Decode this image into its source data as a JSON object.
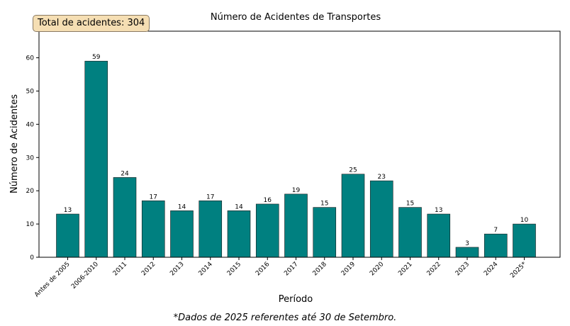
{
  "chart_data": {
    "type": "bar",
    "title": "Número de Acidentes de Transportes",
    "xlabel": "Período",
    "ylabel": "Número de Acidentes",
    "categories": [
      "Antes de 2005",
      "2006-2010",
      "2011",
      "2012",
      "2013",
      "2014",
      "2015",
      "2016",
      "2017",
      "2018",
      "2019",
      "2020",
      "2021",
      "2022",
      "2023",
      "2024",
      "2025*"
    ],
    "values": [
      13,
      59,
      24,
      17,
      14,
      17,
      14,
      16,
      19,
      15,
      25,
      23,
      15,
      13,
      3,
      7,
      10
    ],
    "ylim": [
      0,
      68
    ],
    "yticks": [
      0,
      10,
      20,
      30,
      40,
      50,
      60
    ],
    "bar_color": "#008080",
    "grid": false
  },
  "total_badge": "Total de acidentes: 304",
  "footnote": "*Dados de 2025 referentes até 30 de Setembro."
}
